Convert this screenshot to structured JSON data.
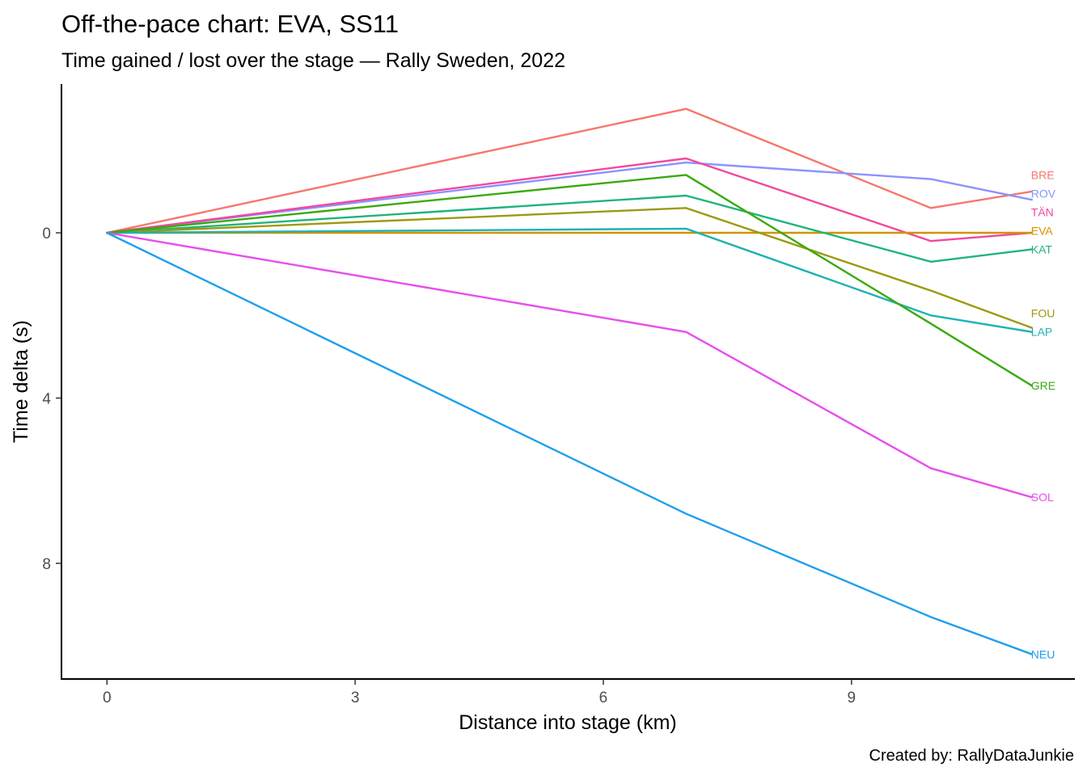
{
  "chart_data": {
    "type": "line",
    "title": "Off-the-pace chart: EVA, SS11",
    "subtitle": "Time gained / lost over the stage — Rally Sweden, 2022",
    "xlabel": "Distance into stage (km)",
    "ylabel": "Time delta (s)",
    "caption": "Created by: RallyDataJunkie",
    "xlim": [
      -0.55,
      11.7
    ],
    "ylim": [
      -3.6,
      10.8
    ],
    "y_reversed": true,
    "grid": false,
    "legend": "none",
    "x_ticks": [
      0,
      3,
      6,
      9
    ],
    "y_ticks": [
      0,
      4,
      8
    ],
    "x": [
      0,
      7.0,
      9.96,
      11.18
    ],
    "series": [
      {
        "name": "BRE",
        "color": "#F8766D",
        "values": [
          0,
          -3.0,
          -0.6,
          -1.0
        ]
      },
      {
        "name": "ROV",
        "color": "#8B93FF",
        "values": [
          0,
          -1.7,
          -1.3,
          -0.8
        ]
      },
      {
        "name": "TÄN",
        "color": "#F2479F",
        "values": [
          0,
          -1.8,
          0.2,
          0.0
        ]
      },
      {
        "name": "EVA",
        "color": "#D39200",
        "values": [
          0,
          0.0,
          0.0,
          0.0
        ]
      },
      {
        "name": "KAT",
        "color": "#1FB47C",
        "values": [
          0,
          -0.9,
          0.7,
          0.4
        ]
      },
      {
        "name": "FOU",
        "color": "#9C9A10",
        "values": [
          0,
          -0.6,
          1.4,
          2.3
        ]
      },
      {
        "name": "LAP",
        "color": "#1FB2B2",
        "values": [
          0,
          -0.1,
          2.0,
          2.4
        ]
      },
      {
        "name": "GRE",
        "color": "#3AAA0C",
        "values": [
          0,
          -1.4,
          2.2,
          3.7
        ]
      },
      {
        "name": "SOL",
        "color": "#E64EED",
        "values": [
          0,
          2.4,
          5.7,
          6.4
        ]
      },
      {
        "name": "NEU",
        "color": "#1F9FEE",
        "values": [
          0,
          6.8,
          9.3,
          10.2
        ]
      }
    ],
    "end_labels": [
      {
        "name": "BRE",
        "y": -1.4
      },
      {
        "name": "ROV",
        "y": -0.95
      },
      {
        "name": "TÄN",
        "y": -0.5
      },
      {
        "name": "EVA",
        "y": -0.05
      },
      {
        "name": "KAT",
        "y": 0.4
      },
      {
        "name": "FOU",
        "y": 1.95
      },
      {
        "name": "LAP",
        "y": 2.4
      },
      {
        "name": "GRE",
        "y": 3.7
      },
      {
        "name": "SOL",
        "y": 6.4
      },
      {
        "name": "NEU",
        "y": 10.2
      }
    ]
  }
}
